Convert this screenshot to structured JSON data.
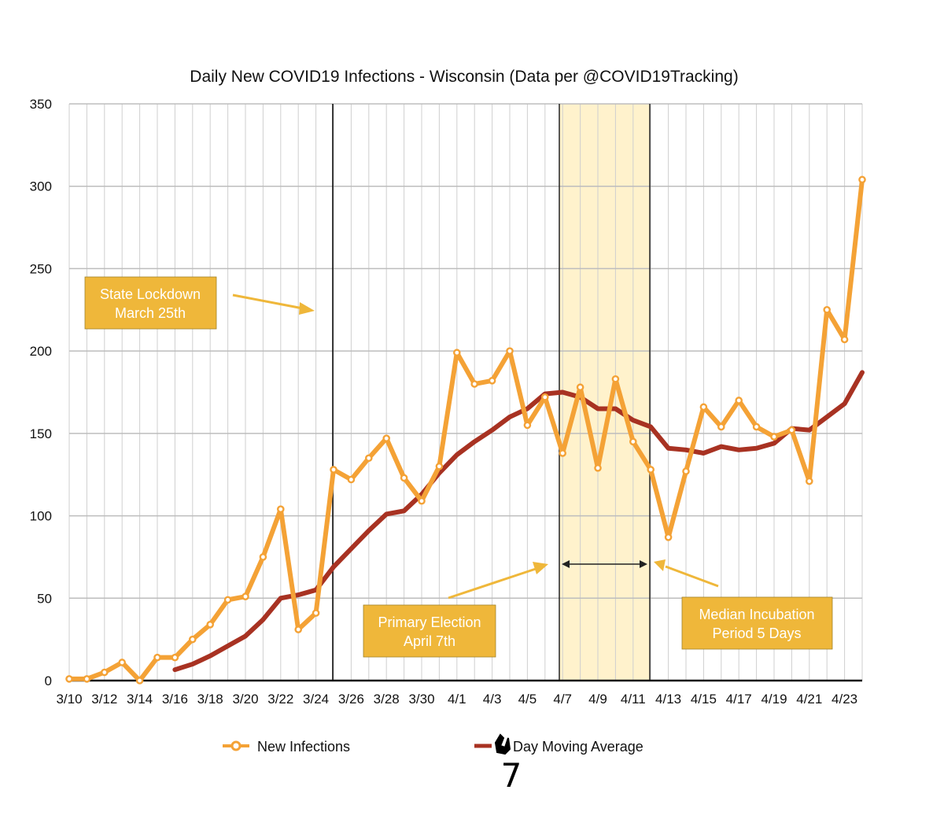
{
  "chart_data": {
    "type": "line",
    "title": "Daily New COVID19 Infections - Wisconsin (Data per @COVID19Tracking)",
    "xlabel": "",
    "ylabel": "",
    "ylim": [
      0,
      350
    ],
    "yticks": [
      0,
      50,
      100,
      150,
      200,
      250,
      300,
      350
    ],
    "x": [
      "3/10",
      "3/11",
      "3/12",
      "3/13",
      "3/14",
      "3/15",
      "3/16",
      "3/17",
      "3/18",
      "3/19",
      "3/20",
      "3/21",
      "3/22",
      "3/23",
      "3/24",
      "3/25",
      "3/26",
      "3/27",
      "3/28",
      "3/29",
      "3/30",
      "3/31",
      "4/1",
      "4/2",
      "4/3",
      "4/4",
      "4/5",
      "4/6",
      "4/7",
      "4/8",
      "4/9",
      "4/10",
      "4/11",
      "4/12",
      "4/13",
      "4/14",
      "4/15",
      "4/16",
      "4/17",
      "4/18",
      "4/19",
      "4/20",
      "4/21",
      "4/22",
      "4/23",
      "4/24"
    ],
    "xtick_labels": [
      "3/10",
      "3/12",
      "3/14",
      "3/16",
      "3/18",
      "3/20",
      "3/22",
      "3/24",
      "3/26",
      "3/28",
      "3/30",
      "4/1",
      "4/3",
      "4/5",
      "4/7",
      "4/9",
      "4/11",
      "4/13",
      "4/15",
      "4/17",
      "4/19",
      "4/21",
      "4/23"
    ],
    "grid": true,
    "legend_position": "bottom",
    "series": [
      {
        "name": "New Infections",
        "color": "#F4A236",
        "marker": "circle",
        "values": [
          1,
          1,
          5,
          11,
          0,
          14,
          14,
          25,
          34,
          49,
          51,
          75,
          104,
          31,
          41,
          128,
          122,
          135,
          147,
          123,
          109,
          130,
          199,
          180,
          182,
          200,
          155,
          172,
          138,
          178,
          129,
          183,
          145,
          128,
          87,
          127,
          166,
          154,
          170,
          154,
          148,
          152,
          121,
          225,
          207,
          304
        ]
      },
      {
        "name": "Day Moving Average",
        "color": "#A83222",
        "marker": "none",
        "values": [
          null,
          null,
          null,
          null,
          null,
          null,
          6.6,
          10,
          15,
          21,
          27,
          37,
          50,
          52,
          55,
          69,
          80,
          91,
          101,
          103,
          113,
          126,
          137,
          145,
          152,
          160,
          165,
          174,
          175,
          172,
          165,
          165,
          158,
          154,
          141,
          140,
          138,
          142,
          140,
          141,
          144,
          153,
          152,
          160,
          168,
          187
        ]
      }
    ],
    "vertical_lines": [
      {
        "x": "3/25",
        "color": "#000000"
      }
    ],
    "shaded_regions": [
      {
        "x_start": "4/7",
        "x_end": "4/12",
        "color": "#FFF2CC"
      }
    ],
    "annotations": [
      {
        "id": "lockdown",
        "lines": [
          "State Lockdown",
          "March 25th"
        ]
      },
      {
        "id": "election",
        "lines": [
          "Primary Election",
          "April 7th"
        ]
      },
      {
        "id": "incubation",
        "lines": [
          "Median Incubation",
          "Period 5 Days"
        ]
      }
    ],
    "handwritten_correction": "7"
  }
}
